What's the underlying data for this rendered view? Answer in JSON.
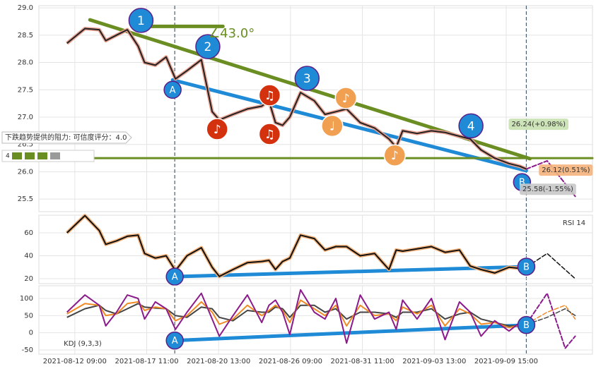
{
  "chart_data": [
    {
      "type": "line",
      "x": [
        8.9,
        11.4,
        13.4,
        14.3,
        15.8,
        17.3,
        18.8,
        19.7,
        21.2,
        22.7,
        24.0,
        25.6,
        27.6,
        29.1,
        30.1,
        32.0,
        34.0,
        36.0,
        37.0,
        37.9,
        38.9,
        39.9,
        41.4,
        43.3,
        44.8,
        46.3,
        47.8,
        49.7,
        51.7,
        53.7,
        54.7,
        55.6,
        57.6,
        59.6,
        61.5,
        63.5,
        65.0,
        66.5,
        68.4,
        70.4,
        71.9,
        72.8
      ],
      "series": [
        {
          "color": "#222222",
          "halo": "#e8a090",
          "values": [
            28.35,
            28.62,
            28.6,
            28.4,
            28.5,
            28.6,
            28.3,
            28.0,
            27.95,
            28.1,
            27.7,
            27.85,
            28.05,
            27.1,
            26.95,
            27.05,
            27.15,
            27.2,
            27.3,
            26.9,
            26.85,
            27.0,
            27.45,
            27.3,
            27.05,
            27.1,
            27.15,
            26.9,
            26.8,
            26.6,
            26.45,
            26.75,
            26.7,
            26.75,
            26.72,
            26.65,
            26.6,
            26.4,
            26.25,
            26.15,
            26.1,
            26.05
          ]
        }
      ],
      "lines": [
        {
          "color": "#6b8e23",
          "width": 5,
          "x": [
            12.1,
            73.3
          ],
          "values": [
            28.78,
            26.24
          ]
        },
        {
          "color": "#1f8ad6",
          "width": 5,
          "x": [
            23.6,
            72.8
          ],
          "values": [
            27.68,
            26.02
          ]
        },
        {
          "color": "#6b8e23",
          "width": 3,
          "x": [
            5,
            82
          ],
          "values": [
            26.25,
            26.25
          ]
        },
        {
          "color": "#6b8e23",
          "width": 5,
          "x": [
            18.3,
            30.6
          ],
          "values": [
            28.66,
            28.66
          ]
        },
        {
          "color": "#8b1a8b",
          "width": 2,
          "dash": true,
          "x": [
            72.8,
            75.7,
            79.6
          ],
          "values": [
            26.05,
            26.2,
            25.55
          ]
        }
      ],
      "vlines": [
        23.9,
        72.8
      ],
      "xlim": [
        5,
        82
      ],
      "ylim": [
        25.27,
        29.04
      ],
      "yticks": [
        {
          "value": 29,
          "label": "29.0"
        },
        28.5,
        {
          "value": 28,
          "label": "28.0"
        },
        27.5,
        {
          "value": 27,
          "label": "27.0"
        },
        26.5,
        {
          "value": 26,
          "label": "26.0"
        },
        25.5
      ],
      "xticks": [
        10,
        20,
        30,
        40,
        50,
        60,
        70
      ],
      "annotations": [
        {
          "text": "1",
          "x": 19.2,
          "y": 28.77
        },
        {
          "text": "2",
          "x": 28.5,
          "y": 28.29
        },
        {
          "text": "3",
          "x": 42.3,
          "y": 27.71
        },
        {
          "text": "4",
          "x": 65.1,
          "y": 26.84
        },
        {
          "text": "A",
          "x": 23.6,
          "y": 27.5
        },
        {
          "text": "B",
          "x": 72.2,
          "y": 25.81
        }
      ],
      "notes": [
        {
          "text": "♪",
          "x": 29.8,
          "y": 26.78,
          "color": "#d4310f"
        },
        {
          "text": "♫",
          "x": 37.1,
          "y": 27.4,
          "color": "#d4310f"
        },
        {
          "text": "♫",
          "x": 37.1,
          "y": 26.69,
          "color": "#d4310f"
        },
        {
          "text": "♪",
          "x": 47.7,
          "y": 27.35,
          "color": "#f0a050"
        },
        {
          "text": "♩",
          "x": 45.8,
          "y": 26.84,
          "color": "#f0a050"
        },
        {
          "text": "♪",
          "x": 54.5,
          "y": 26.3,
          "color": "#f0a050"
        }
      ],
      "labels": [
        {
          "text": "26.24(+0.98%)",
          "x": 74.5,
          "y": 26.87,
          "color": "#c8e0b0"
        },
        {
          "text": "26.12(0.51%)",
          "x": 78.3,
          "y": 26.03,
          "color": "#f4b27a"
        },
        {
          "text": "25.58(-1.55%)",
          "x": 75.8,
          "y": 25.68,
          "color": "#c8c8c8"
        }
      ],
      "angle_text": "∠43.0°",
      "note_text": "下跌趋势提供的阻力: 可信度评分：4.0",
      "score": "4"
    },
    {
      "type": "line",
      "title": "RSI 14",
      "x": [
        8.9,
        11.4,
        13.4,
        14.3,
        15.8,
        17.3,
        18.8,
        19.7,
        21.2,
        22.7,
        24.0,
        25.6,
        27.6,
        29.1,
        30.1,
        32.0,
        34.0,
        36.0,
        37.0,
        37.9,
        38.9,
        39.9,
        41.4,
        43.3,
        44.8,
        46.3,
        47.8,
        49.7,
        51.7,
        53.7,
        54.7,
        55.6,
        57.6,
        59.6,
        61.5,
        63.5,
        65.0,
        66.5,
        68.4,
        70.4,
        71.9,
        72.8
      ],
      "series": [
        {
          "color": "#111111",
          "halo": "#f4b27a",
          "values": [
            60,
            75,
            62,
            50,
            53,
            57,
            58,
            42,
            38,
            40,
            27,
            40,
            47,
            30,
            22,
            28,
            34,
            35,
            36,
            28,
            35,
            38,
            58,
            55,
            45,
            48,
            48,
            40,
            42,
            28,
            45,
            44,
            46,
            48,
            43,
            45,
            31,
            28,
            25,
            30,
            29,
            30
          ]
        }
      ],
      "lines": [
        {
          "color": "#1f8ad6",
          "width": 5,
          "x": [
            23.9,
            72.8
          ],
          "values": [
            21.8,
            30.5
          ]
        },
        {
          "color": "#111111",
          "width": 1.5,
          "dash": true,
          "x": [
            72.8,
            75.7,
            79.6
          ],
          "values": [
            30,
            42,
            20
          ]
        }
      ],
      "xlim": [
        5,
        82
      ],
      "ylim": [
        15.7,
        75.4
      ],
      "yticks": [
        20,
        40,
        60
      ],
      "xticks": [
        10,
        20,
        30,
        40,
        50,
        60,
        70
      ],
      "annotations": [
        {
          "text": "A",
          "x": 23.9,
          "y": 21.8
        },
        {
          "text": "B",
          "x": 72.8,
          "y": 30.5
        }
      ]
    },
    {
      "type": "line",
      "title": "KDJ (9,3,3)",
      "x": [
        8.9,
        11.4,
        13.4,
        14.3,
        15.8,
        17.3,
        18.8,
        19.7,
        21.2,
        22.7,
        24.0,
        25.6,
        27.6,
        29.1,
        30.1,
        32.0,
        34.0,
        36.0,
        37.0,
        37.9,
        38.9,
        39.9,
        41.4,
        43.3,
        44.8,
        46.3,
        47.8,
        49.7,
        51.7,
        53.7,
        54.7,
        55.6,
        57.6,
        59.6,
        61.5,
        63.5,
        65.0,
        66.5,
        68.4,
        70.4,
        71.9,
        72.8
      ],
      "series": [
        {
          "color": "#444444",
          "values": [
            45,
            70,
            80,
            65,
            55,
            70,
            85,
            75,
            72,
            70,
            50,
            45,
            75,
            70,
            45,
            35,
            65,
            60,
            60,
            75,
            70,
            45,
            80,
            80,
            60,
            70,
            40,
            60,
            60,
            55,
            45,
            60,
            60,
            70,
            40,
            55,
            60,
            40,
            30,
            20,
            20,
            24
          ]
        },
        {
          "color": "#f08a24",
          "values": [
            55,
            85,
            80,
            50,
            55,
            85,
            90,
            65,
            75,
            70,
            35,
            50,
            90,
            60,
            25,
            40,
            80,
            50,
            65,
            80,
            65,
            30,
            95,
            70,
            50,
            80,
            20,
            80,
            50,
            55,
            35,
            75,
            55,
            80,
            20,
            70,
            55,
            25,
            30,
            15,
            22,
            25
          ]
        },
        {
          "color": "#8b1a8b",
          "values": [
            60,
            110,
            80,
            20,
            60,
            110,
            100,
            40,
            90,
            70,
            10,
            60,
            115,
            40,
            -10,
            50,
            110,
            30,
            80,
            95,
            60,
            -5,
            125,
            60,
            40,
            100,
            -30,
            110,
            40,
            60,
            10,
            95,
            40,
            100,
            -20,
            90,
            60,
            -10,
            35,
            5,
            30,
            25
          ]
        }
      ],
      "lines": [
        {
          "color": "#1f8ad6",
          "width": 5,
          "x": [
            23.9,
            72.8
          ],
          "values": [
            -22.6,
            22.6
          ]
        },
        {
          "color": "#8b1a8b",
          "width": 2,
          "dash": true,
          "x": [
            72.8,
            75.7,
            78.2,
            79.6
          ],
          "values": [
            25,
            115,
            -45,
            -10
          ]
        },
        {
          "color": "#f08a24",
          "width": 1.5,
          "dash": true,
          "x": [
            72.8,
            75.7,
            78.2,
            79.6
          ],
          "values": [
            25,
            60,
            80,
            40
          ]
        },
        {
          "color": "#444444",
          "width": 1.5,
          "dash": true,
          "x": [
            72.8,
            75.7,
            78.2,
            79.6
          ],
          "values": [
            24,
            45,
            70,
            50
          ]
        }
      ],
      "xlim": [
        5,
        82
      ],
      "ylim": [
        -62.3,
        137
      ],
      "yticks": [
        -50,
        0,
        50,
        100
      ],
      "xticks": [
        {
          "value": 10,
          "label": "2021-08-12 09:00"
        },
        {
          "value": 20,
          "label": "2021-08-17 11:00"
        },
        {
          "value": 30,
          "label": "2021-08-20 13:00"
        },
        {
          "value": 40,
          "label": "2021-08-26 09:00"
        },
        {
          "value": 50,
          "label": "2021-08-31 11:00"
        },
        {
          "value": 60,
          "label": "2021-09-03 13:00"
        },
        {
          "value": 70,
          "label": "2021-09-09 15:00"
        }
      ],
      "annotations": [
        {
          "text": "A",
          "x": 23.9,
          "y": -22.6
        },
        {
          "text": "B",
          "x": 72.8,
          "y": 22.6
        }
      ]
    }
  ]
}
